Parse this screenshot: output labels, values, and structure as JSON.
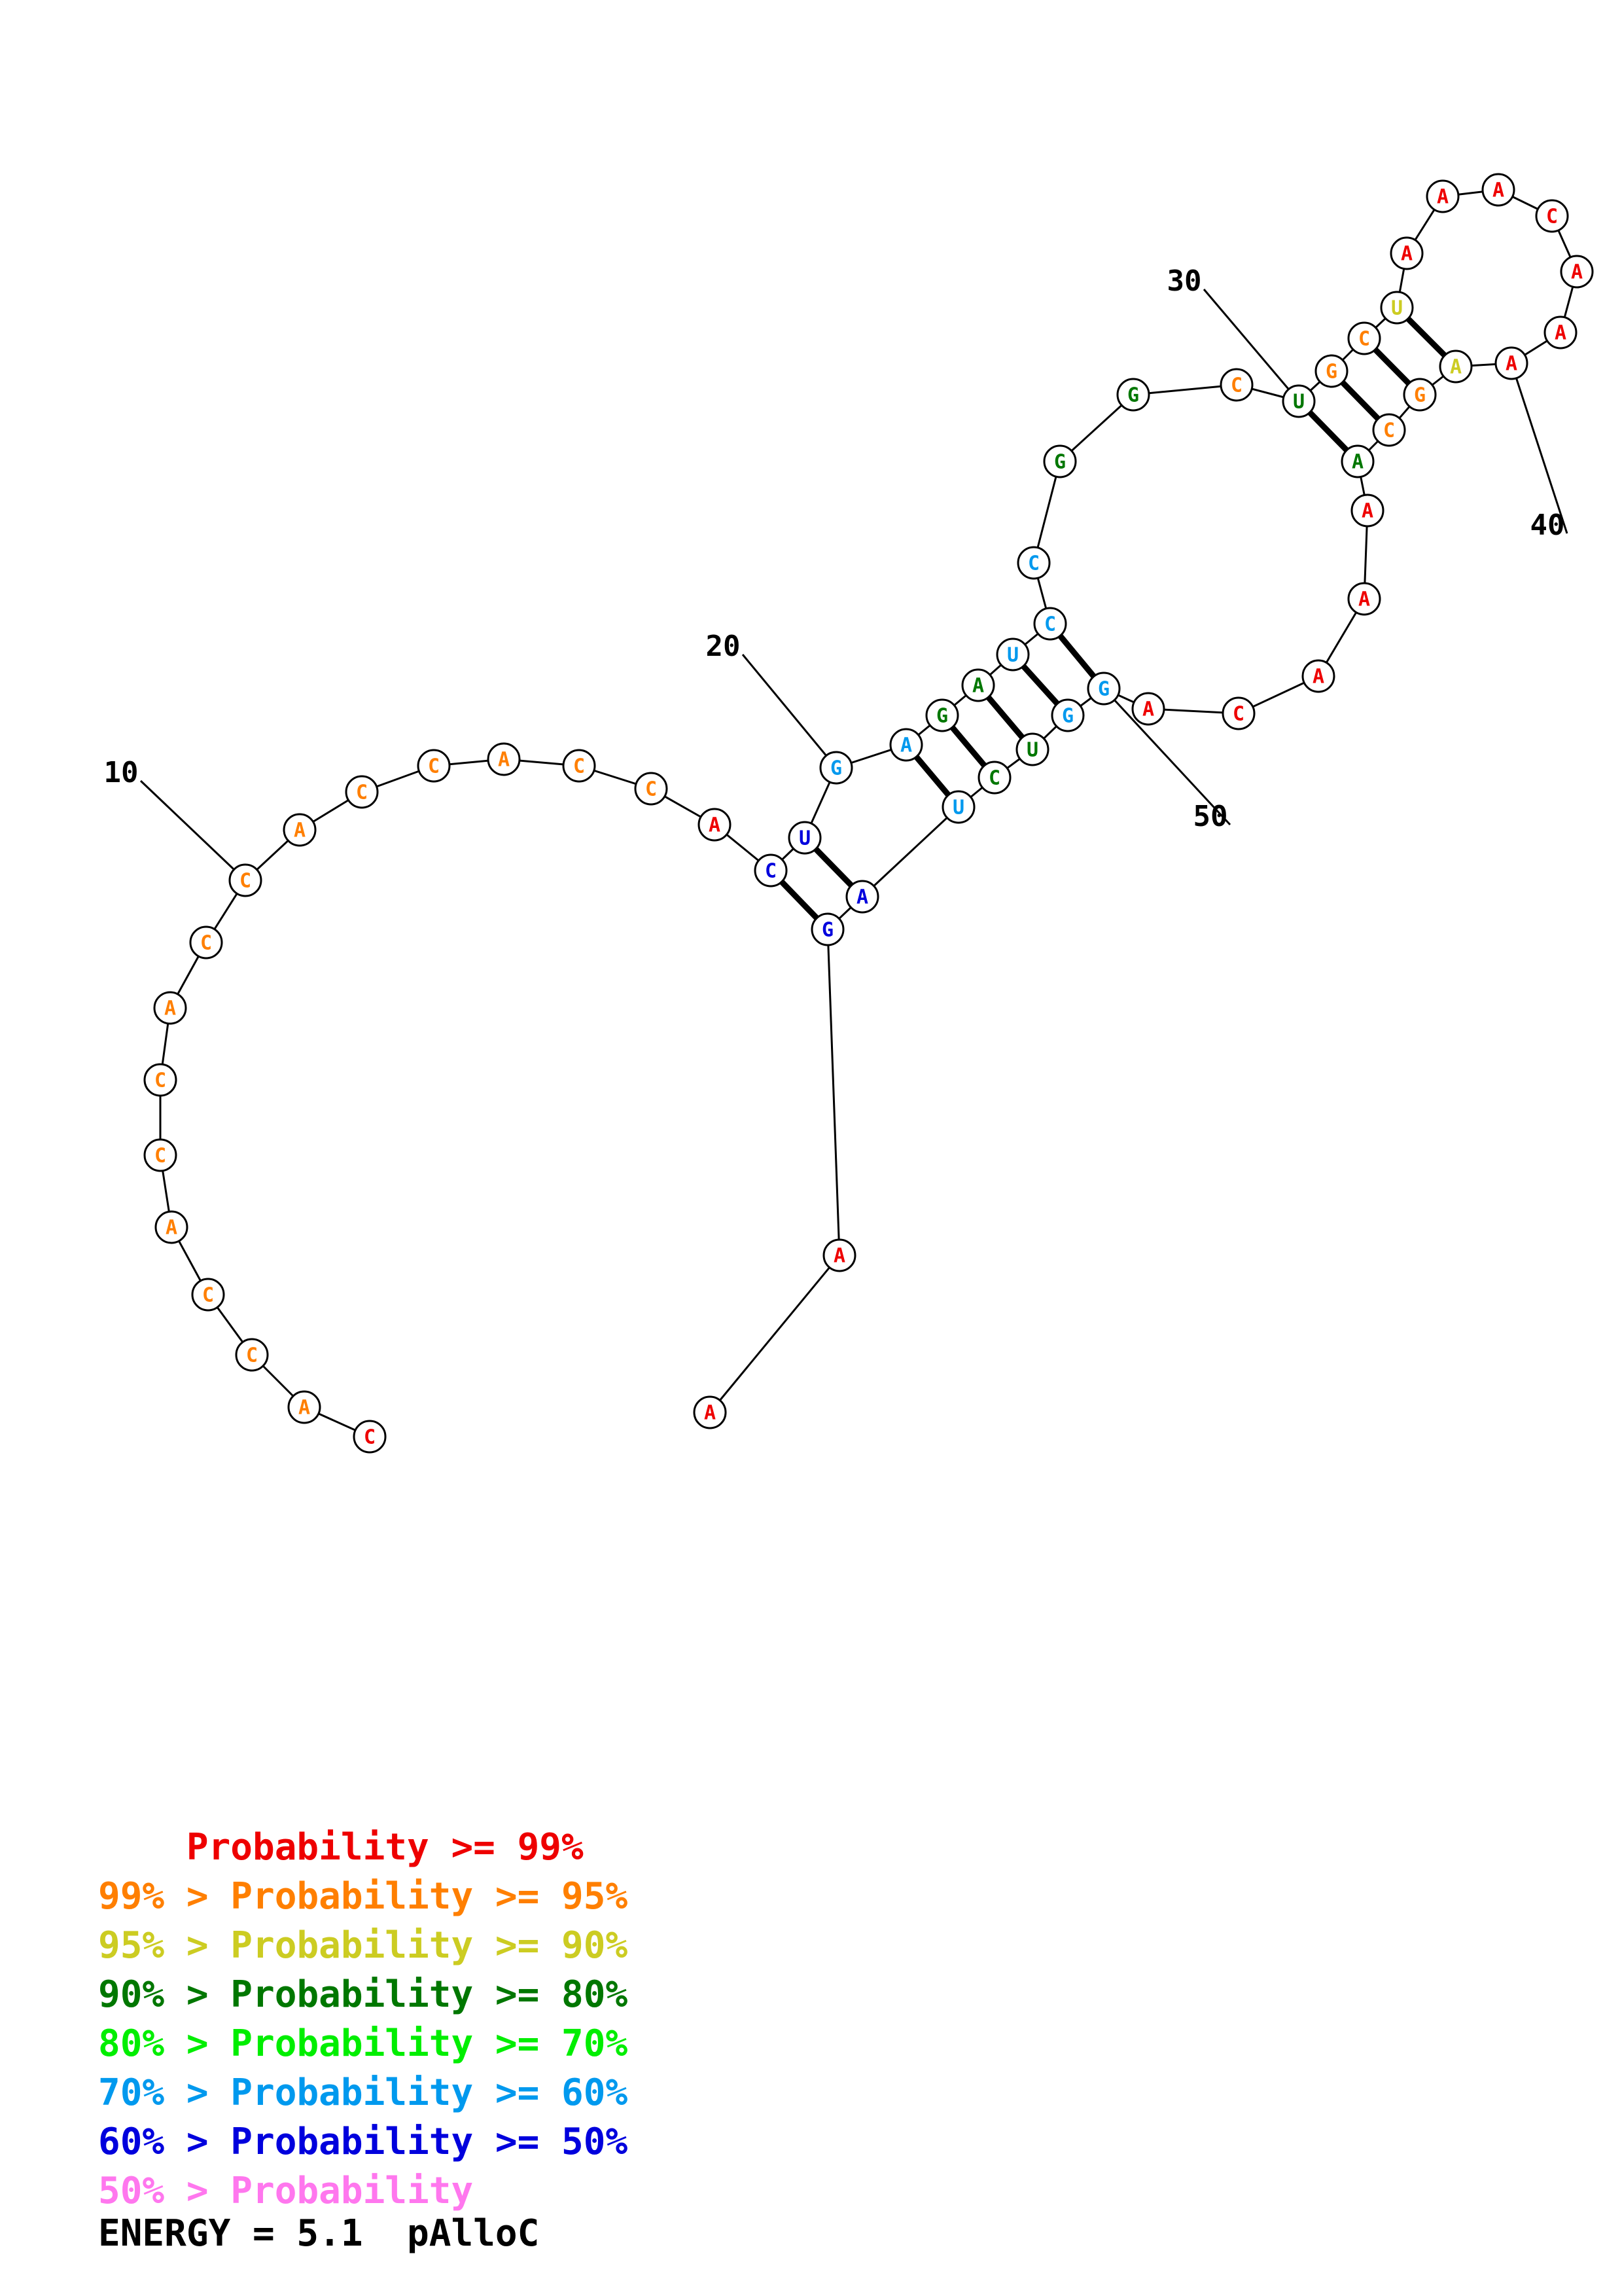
{
  "colors": {
    "p99": "#ee0000",
    "p95": "#ff7f00",
    "p90": "#cccc22",
    "p80": "#007700",
    "p70": "#00ee00",
    "p60": "#0099ee",
    "p50": "#0000dd",
    "plow": "#ff77ee"
  },
  "sequence": [
    {
      "base": "C",
      "cls": "p99"
    },
    {
      "base": "A",
      "cls": "p95"
    },
    {
      "base": "C",
      "cls": "p95"
    },
    {
      "base": "C",
      "cls": "p95"
    },
    {
      "base": "A",
      "cls": "p95"
    },
    {
      "base": "C",
      "cls": "p95"
    },
    {
      "base": "C",
      "cls": "p95"
    },
    {
      "base": "A",
      "cls": "p95"
    },
    {
      "base": "C",
      "cls": "p95"
    },
    {
      "base": "C",
      "cls": "p95"
    },
    {
      "base": "A",
      "cls": "p95"
    },
    {
      "base": "C",
      "cls": "p95"
    },
    {
      "base": "C",
      "cls": "p95"
    },
    {
      "base": "A",
      "cls": "p95"
    },
    {
      "base": "C",
      "cls": "p95"
    },
    {
      "base": "C",
      "cls": "p95"
    },
    {
      "base": "A",
      "cls": "p99"
    },
    {
      "base": "C",
      "cls": "p50"
    },
    {
      "base": "U",
      "cls": "p50"
    },
    {
      "base": "G",
      "cls": "p60"
    },
    {
      "base": "A",
      "cls": "p60"
    },
    {
      "base": "G",
      "cls": "p80"
    },
    {
      "base": "A",
      "cls": "p80"
    },
    {
      "base": "U",
      "cls": "p60"
    },
    {
      "base": "C",
      "cls": "p60"
    },
    {
      "base": "C",
      "cls": "p60"
    },
    {
      "base": "G",
      "cls": "p80"
    },
    {
      "base": "G",
      "cls": "p80"
    },
    {
      "base": "C",
      "cls": "p95"
    },
    {
      "base": "U",
      "cls": "p80"
    },
    {
      "base": "G",
      "cls": "p95"
    },
    {
      "base": "C",
      "cls": "p95"
    },
    {
      "base": "U",
      "cls": "p90"
    },
    {
      "base": "A",
      "cls": "p99"
    },
    {
      "base": "A",
      "cls": "p99"
    },
    {
      "base": "A",
      "cls": "p99"
    },
    {
      "base": "C",
      "cls": "p99"
    },
    {
      "base": "A",
      "cls": "p99"
    },
    {
      "base": "A",
      "cls": "p99"
    },
    {
      "base": "A",
      "cls": "p99"
    },
    {
      "base": "A",
      "cls": "p90"
    },
    {
      "base": "G",
      "cls": "p95"
    },
    {
      "base": "C",
      "cls": "p95"
    },
    {
      "base": "A",
      "cls": "p80"
    },
    {
      "base": "A",
      "cls": "p99"
    },
    {
      "base": "A",
      "cls": "p99"
    },
    {
      "base": "A",
      "cls": "p99"
    },
    {
      "base": "C",
      "cls": "p99"
    },
    {
      "base": "A",
      "cls": "p99"
    },
    {
      "base": "G",
      "cls": "p60"
    },
    {
      "base": "G",
      "cls": "p60"
    },
    {
      "base": "U",
      "cls": "p80"
    },
    {
      "base": "C",
      "cls": "p80"
    },
    {
      "base": "U",
      "cls": "p60"
    },
    {
      "base": "A",
      "cls": "p50"
    },
    {
      "base": "G",
      "cls": "p50"
    },
    {
      "base": "A",
      "cls": "p99"
    },
    {
      "base": "A",
      "cls": "p99"
    }
  ],
  "pairs": [
    [
      18,
      56
    ],
    [
      19,
      55
    ],
    [
      21,
      54
    ],
    [
      22,
      53
    ],
    [
      23,
      52
    ],
    [
      24,
      51
    ],
    [
      25,
      50
    ],
    [
      30,
      44
    ],
    [
      31,
      43
    ],
    [
      32,
      42
    ],
    [
      33,
      41
    ]
  ],
  "numbers": [
    {
      "label": "10",
      "index": 10
    },
    {
      "label": "20",
      "index": 20
    },
    {
      "label": "30",
      "index": 30
    },
    {
      "label": "40",
      "index": 40
    },
    {
      "label": "50",
      "index": 50
    }
  ],
  "legend": [
    {
      "prefix": "    ",
      "text": "Probability >= 99%",
      "cls": "p99"
    },
    {
      "prefix": "99% > ",
      "text": "Probability >= 95%",
      "cls": "p95"
    },
    {
      "prefix": "95% > ",
      "text": "Probability >= 90%",
      "cls": "p90"
    },
    {
      "prefix": "90% > ",
      "text": "Probability >= 80%",
      "cls": "p80"
    },
    {
      "prefix": "80% > ",
      "text": "Probability >= 70%",
      "cls": "p70"
    },
    {
      "prefix": "70% > ",
      "text": "Probability >= 60%",
      "cls": "p60"
    },
    {
      "prefix": "60% > ",
      "text": "Probability >= 50%",
      "cls": "p50"
    },
    {
      "prefix": "50% > ",
      "text": "Probability",
      "cls": "plow"
    }
  ],
  "energy": "ENERGY = 5.1  pAlloC"
}
